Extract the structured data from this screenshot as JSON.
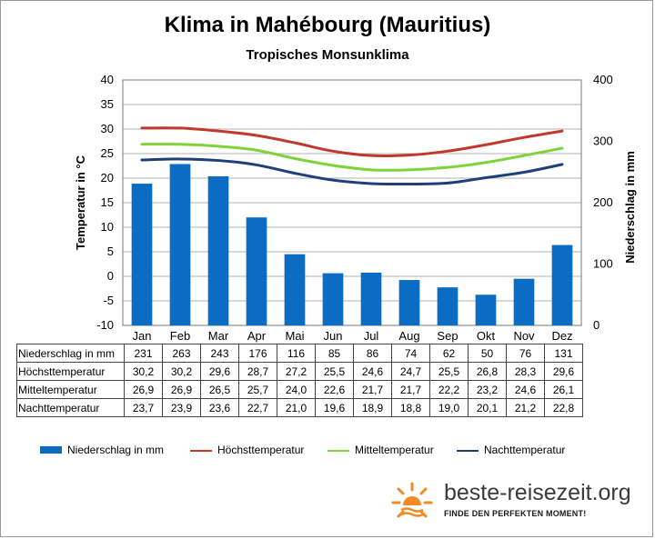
{
  "chart_data": {
    "type": "bar+line",
    "title": "Klima in Mahébourg (Mauritius)",
    "subtitle": "Tropisches Monsunklima",
    "categories": [
      "Jan",
      "Feb",
      "Mar",
      "Apr",
      "Mai",
      "Jun",
      "Jul",
      "Aug",
      "Sep",
      "Okt",
      "Nov",
      "Dez"
    ],
    "y_left": {
      "label": "Temperatur in °C",
      "range": [
        -10,
        40
      ],
      "ticks": [
        "40",
        "35",
        "30",
        "25",
        "20",
        "15",
        "10",
        "5",
        "0",
        "-5",
        "-10"
      ]
    },
    "y_right": {
      "label": "Niederschlag in mm",
      "range": [
        0,
        400
      ],
      "ticks": [
        "400",
        "300",
        "200",
        "100",
        "0"
      ]
    },
    "grid": true,
    "legend_position": "bottom",
    "series": [
      {
        "name": "Niederschlag in mm",
        "kind": "bar",
        "axis": "right",
        "color": "#0b6cc3",
        "values": [
          231,
          263,
          243,
          176,
          116,
          85,
          86,
          74,
          62,
          50,
          76,
          131
        ],
        "labels": [
          "231",
          "263",
          "243",
          "176",
          "116",
          "85",
          "86",
          "74",
          "62",
          "50",
          "76",
          "131"
        ]
      },
      {
        "name": "Höchsttemperatur",
        "kind": "line",
        "axis": "left",
        "color": "#c0392b",
        "values": [
          30.2,
          30.2,
          29.6,
          28.7,
          27.2,
          25.5,
          24.6,
          24.7,
          25.5,
          26.8,
          28.3,
          29.6
        ],
        "labels": [
          "30,2",
          "30,2",
          "29,6",
          "28,7",
          "27,2",
          "25,5",
          "24,6",
          "24,7",
          "25,5",
          "26,8",
          "28,3",
          "29,6"
        ]
      },
      {
        "name": "Mitteltemperatur",
        "kind": "line",
        "axis": "left",
        "color": "#7ed23a",
        "values": [
          26.9,
          26.9,
          26.5,
          25.7,
          24.0,
          22.6,
          21.7,
          21.7,
          22.2,
          23.2,
          24.6,
          26.1
        ],
        "labels": [
          "26,9",
          "26,9",
          "26,5",
          "25,7",
          "24,0",
          "22,6",
          "21,7",
          "21,7",
          "22,2",
          "23,2",
          "24,6",
          "26,1"
        ]
      },
      {
        "name": "Nachttemperatur",
        "kind": "line",
        "axis": "left",
        "color": "#1f3f7a",
        "values": [
          23.7,
          23.9,
          23.6,
          22.7,
          21.0,
          19.6,
          18.9,
          18.8,
          19.0,
          20.1,
          21.2,
          22.8
        ],
        "labels": [
          "23,7",
          "23,9",
          "23,6",
          "22,7",
          "21,0",
          "19,6",
          "18,9",
          "18,8",
          "19,0",
          "20,1",
          "21,2",
          "22,8"
        ]
      }
    ]
  },
  "table": {
    "row_labels": [
      "Niederschlag in mm",
      "Höchsttemperatur",
      "Mitteltemperatur",
      "Nachttemperatur"
    ]
  },
  "logo": {
    "text": "beste-reisezeit.org",
    "slogan": "FINDE DEN PERFEKTEN MOMENT!",
    "icon": "sun-icon",
    "color": "#f08a24"
  }
}
